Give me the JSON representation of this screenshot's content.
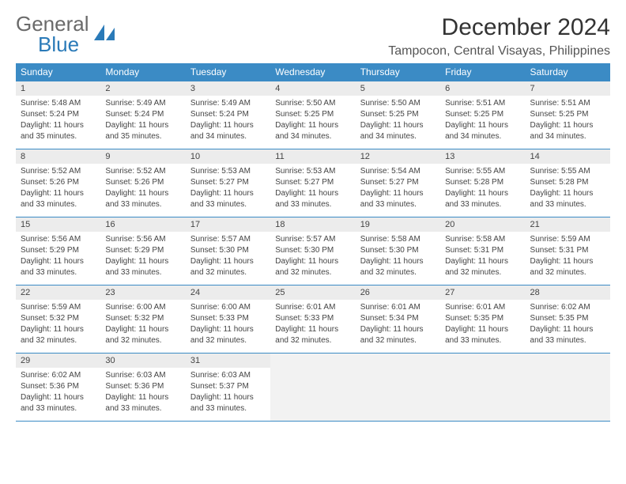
{
  "logo": {
    "text1": "General",
    "text2": "Blue"
  },
  "header": {
    "title": "December 2024",
    "location": "Tampocon, Central Visayas, Philippines"
  },
  "colors": {
    "header_bg": "#3b8bc5",
    "header_text": "#ffffff",
    "daynum_bg": "#ececec",
    "cell_border": "#3b8bc5",
    "body_text": "#444444",
    "logo_gray": "#6a6a6a",
    "logo_blue": "#2a7ab8"
  },
  "weekdays": [
    "Sunday",
    "Monday",
    "Tuesday",
    "Wednesday",
    "Thursday",
    "Friday",
    "Saturday"
  ],
  "days": [
    {
      "n": "1",
      "sr": "Sunrise: 5:48 AM",
      "ss": "Sunset: 5:24 PM",
      "d1": "Daylight: 11 hours",
      "d2": "and 35 minutes."
    },
    {
      "n": "2",
      "sr": "Sunrise: 5:49 AM",
      "ss": "Sunset: 5:24 PM",
      "d1": "Daylight: 11 hours",
      "d2": "and 35 minutes."
    },
    {
      "n": "3",
      "sr": "Sunrise: 5:49 AM",
      "ss": "Sunset: 5:24 PM",
      "d1": "Daylight: 11 hours",
      "d2": "and 34 minutes."
    },
    {
      "n": "4",
      "sr": "Sunrise: 5:50 AM",
      "ss": "Sunset: 5:25 PM",
      "d1": "Daylight: 11 hours",
      "d2": "and 34 minutes."
    },
    {
      "n": "5",
      "sr": "Sunrise: 5:50 AM",
      "ss": "Sunset: 5:25 PM",
      "d1": "Daylight: 11 hours",
      "d2": "and 34 minutes."
    },
    {
      "n": "6",
      "sr": "Sunrise: 5:51 AM",
      "ss": "Sunset: 5:25 PM",
      "d1": "Daylight: 11 hours",
      "d2": "and 34 minutes."
    },
    {
      "n": "7",
      "sr": "Sunrise: 5:51 AM",
      "ss": "Sunset: 5:25 PM",
      "d1": "Daylight: 11 hours",
      "d2": "and 34 minutes."
    },
    {
      "n": "8",
      "sr": "Sunrise: 5:52 AM",
      "ss": "Sunset: 5:26 PM",
      "d1": "Daylight: 11 hours",
      "d2": "and 33 minutes."
    },
    {
      "n": "9",
      "sr": "Sunrise: 5:52 AM",
      "ss": "Sunset: 5:26 PM",
      "d1": "Daylight: 11 hours",
      "d2": "and 33 minutes."
    },
    {
      "n": "10",
      "sr": "Sunrise: 5:53 AM",
      "ss": "Sunset: 5:27 PM",
      "d1": "Daylight: 11 hours",
      "d2": "and 33 minutes."
    },
    {
      "n": "11",
      "sr": "Sunrise: 5:53 AM",
      "ss": "Sunset: 5:27 PM",
      "d1": "Daylight: 11 hours",
      "d2": "and 33 minutes."
    },
    {
      "n": "12",
      "sr": "Sunrise: 5:54 AM",
      "ss": "Sunset: 5:27 PM",
      "d1": "Daylight: 11 hours",
      "d2": "and 33 minutes."
    },
    {
      "n": "13",
      "sr": "Sunrise: 5:55 AM",
      "ss": "Sunset: 5:28 PM",
      "d1": "Daylight: 11 hours",
      "d2": "and 33 minutes."
    },
    {
      "n": "14",
      "sr": "Sunrise: 5:55 AM",
      "ss": "Sunset: 5:28 PM",
      "d1": "Daylight: 11 hours",
      "d2": "and 33 minutes."
    },
    {
      "n": "15",
      "sr": "Sunrise: 5:56 AM",
      "ss": "Sunset: 5:29 PM",
      "d1": "Daylight: 11 hours",
      "d2": "and 33 minutes."
    },
    {
      "n": "16",
      "sr": "Sunrise: 5:56 AM",
      "ss": "Sunset: 5:29 PM",
      "d1": "Daylight: 11 hours",
      "d2": "and 33 minutes."
    },
    {
      "n": "17",
      "sr": "Sunrise: 5:57 AM",
      "ss": "Sunset: 5:30 PM",
      "d1": "Daylight: 11 hours",
      "d2": "and 32 minutes."
    },
    {
      "n": "18",
      "sr": "Sunrise: 5:57 AM",
      "ss": "Sunset: 5:30 PM",
      "d1": "Daylight: 11 hours",
      "d2": "and 32 minutes."
    },
    {
      "n": "19",
      "sr": "Sunrise: 5:58 AM",
      "ss": "Sunset: 5:30 PM",
      "d1": "Daylight: 11 hours",
      "d2": "and 32 minutes."
    },
    {
      "n": "20",
      "sr": "Sunrise: 5:58 AM",
      "ss": "Sunset: 5:31 PM",
      "d1": "Daylight: 11 hours",
      "d2": "and 32 minutes."
    },
    {
      "n": "21",
      "sr": "Sunrise: 5:59 AM",
      "ss": "Sunset: 5:31 PM",
      "d1": "Daylight: 11 hours",
      "d2": "and 32 minutes."
    },
    {
      "n": "22",
      "sr": "Sunrise: 5:59 AM",
      "ss": "Sunset: 5:32 PM",
      "d1": "Daylight: 11 hours",
      "d2": "and 32 minutes."
    },
    {
      "n": "23",
      "sr": "Sunrise: 6:00 AM",
      "ss": "Sunset: 5:32 PM",
      "d1": "Daylight: 11 hours",
      "d2": "and 32 minutes."
    },
    {
      "n": "24",
      "sr": "Sunrise: 6:00 AM",
      "ss": "Sunset: 5:33 PM",
      "d1": "Daylight: 11 hours",
      "d2": "and 32 minutes."
    },
    {
      "n": "25",
      "sr": "Sunrise: 6:01 AM",
      "ss": "Sunset: 5:33 PM",
      "d1": "Daylight: 11 hours",
      "d2": "and 32 minutes."
    },
    {
      "n": "26",
      "sr": "Sunrise: 6:01 AM",
      "ss": "Sunset: 5:34 PM",
      "d1": "Daylight: 11 hours",
      "d2": "and 32 minutes."
    },
    {
      "n": "27",
      "sr": "Sunrise: 6:01 AM",
      "ss": "Sunset: 5:35 PM",
      "d1": "Daylight: 11 hours",
      "d2": "and 33 minutes."
    },
    {
      "n": "28",
      "sr": "Sunrise: 6:02 AM",
      "ss": "Sunset: 5:35 PM",
      "d1": "Daylight: 11 hours",
      "d2": "and 33 minutes."
    },
    {
      "n": "29",
      "sr": "Sunrise: 6:02 AM",
      "ss": "Sunset: 5:36 PM",
      "d1": "Daylight: 11 hours",
      "d2": "and 33 minutes."
    },
    {
      "n": "30",
      "sr": "Sunrise: 6:03 AM",
      "ss": "Sunset: 5:36 PM",
      "d1": "Daylight: 11 hours",
      "d2": "and 33 minutes."
    },
    {
      "n": "31",
      "sr": "Sunrise: 6:03 AM",
      "ss": "Sunset: 5:37 PM",
      "d1": "Daylight: 11 hours",
      "d2": "and 33 minutes."
    }
  ],
  "trailing_empty": 4
}
